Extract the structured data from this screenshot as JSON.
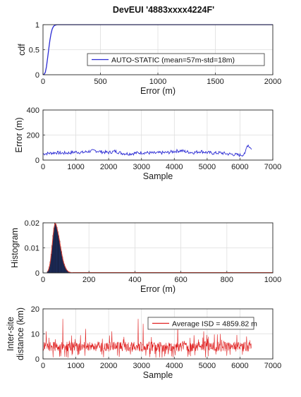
{
  "figure_title": "DevEUI '4883xxxx4224F'",
  "chart_data": [
    {
      "type": "line",
      "xlabel": "Error (m)",
      "ylabel": "cdf",
      "xlim": [
        0,
        2000
      ],
      "ylim": [
        0,
        1
      ],
      "xticks": [
        "0",
        "500",
        "1000",
        "1500",
        "2000"
      ],
      "yticks": [
        "0",
        "0.5",
        "1"
      ],
      "grid": true,
      "legend_position": "middle-right",
      "series": [
        {
          "name": "AUTO-STATIC (mean=57m-std=18m)",
          "color": "#2b2bd4",
          "x": [
            0,
            10,
            20,
            30,
            40,
            50,
            60,
            70,
            80,
            90,
            100,
            120,
            150,
            2000
          ],
          "y": [
            0,
            0.01,
            0.05,
            0.16,
            0.33,
            0.52,
            0.69,
            0.82,
            0.91,
            0.96,
            0.985,
            1,
            1,
            1
          ]
        }
      ]
    },
    {
      "type": "line",
      "xlabel": "Sample",
      "ylabel": "Error (m)",
      "xlim": [
        0,
        7000
      ],
      "ylim": [
        0,
        400
      ],
      "xticks": [
        "0",
        "1000",
        "2000",
        "3000",
        "4000",
        "5000",
        "6000",
        "7000"
      ],
      "yticks": [
        "0",
        "200",
        "400"
      ],
      "grid": true,
      "series": [
        {
          "color": "#2b2bd4",
          "x": [
            0,
            200,
            400,
            600,
            800,
            1000,
            1200,
            1400,
            1600,
            1800,
            2000,
            2200,
            2400,
            2600,
            2800,
            3000,
            3200,
            3400,
            3600,
            3800,
            4000,
            4200,
            4400,
            4600,
            4800,
            5000,
            5200,
            5400,
            5600,
            5800,
            6000,
            6150,
            6200,
            6250,
            6350
          ],
          "y": [
            50,
            55,
            60,
            55,
            58,
            65,
            60,
            70,
            75,
            65,
            60,
            70,
            55,
            50,
            55,
            60,
            58,
            55,
            58,
            60,
            70,
            75,
            65,
            60,
            70,
            60,
            55,
            58,
            50,
            45,
            40,
            45,
            110,
            120,
            85
          ]
        }
      ]
    },
    {
      "type": "bar",
      "xlabel": "Error (m)",
      "ylabel": "Histogram",
      "xlim": [
        0,
        1000
      ],
      "ylim": [
        0,
        0.02
      ],
      "xticks": [
        "0",
        "200",
        "400",
        "600",
        "800",
        "1000"
      ],
      "yticks": [
        "0",
        "0.01",
        "0.02"
      ],
      "grid": true,
      "bar_color": "#1e2d5a",
      "fit_color": "#e04030",
      "bin_width": 4,
      "x": [
        20,
        24,
        28,
        32,
        36,
        40,
        44,
        48,
        52,
        56,
        60,
        64,
        68,
        72,
        76,
        80,
        84,
        88,
        92,
        96,
        100,
        104,
        108,
        112,
        116,
        120,
        124,
        128
      ],
      "values": [
        0.0005,
        0.0012,
        0.0025,
        0.0045,
        0.0075,
        0.011,
        0.015,
        0.018,
        0.0198,
        0.0195,
        0.0182,
        0.0165,
        0.0148,
        0.0128,
        0.0105,
        0.0085,
        0.0065,
        0.0048,
        0.0035,
        0.0025,
        0.0017,
        0.0011,
        0.0007,
        0.0004,
        0.0003,
        0.0002,
        0.0001,
        0.0001
      ]
    },
    {
      "type": "line",
      "xlabel": "Sample",
      "ylabel": "Inter-site distance (km)",
      "xlim": [
        0,
        7000
      ],
      "ylim": [
        0,
        20
      ],
      "xticks": [
        "0",
        "1000",
        "2000",
        "3000",
        "4000",
        "5000",
        "6000",
        "7000"
      ],
      "yticks": [
        "0",
        "10",
        "20"
      ],
      "grid": true,
      "legend_position": "top-right",
      "series": [
        {
          "name": "Average ISD = 4859.82 m",
          "color": "#e02020",
          "x": [
            0,
            6350
          ],
          "baseline_km": 4.86,
          "high_spikes_km": [
            [
              100,
              11
            ],
            [
              600,
              16
            ],
            [
              1300,
              12
            ],
            [
              2100,
              11
            ],
            [
              2900,
              16
            ],
            [
              3050,
              14
            ],
            [
              4100,
              14
            ],
            [
              4900,
              11
            ],
            [
              5400,
              10
            ],
            [
              6200,
              9
            ]
          ]
        }
      ]
    }
  ]
}
